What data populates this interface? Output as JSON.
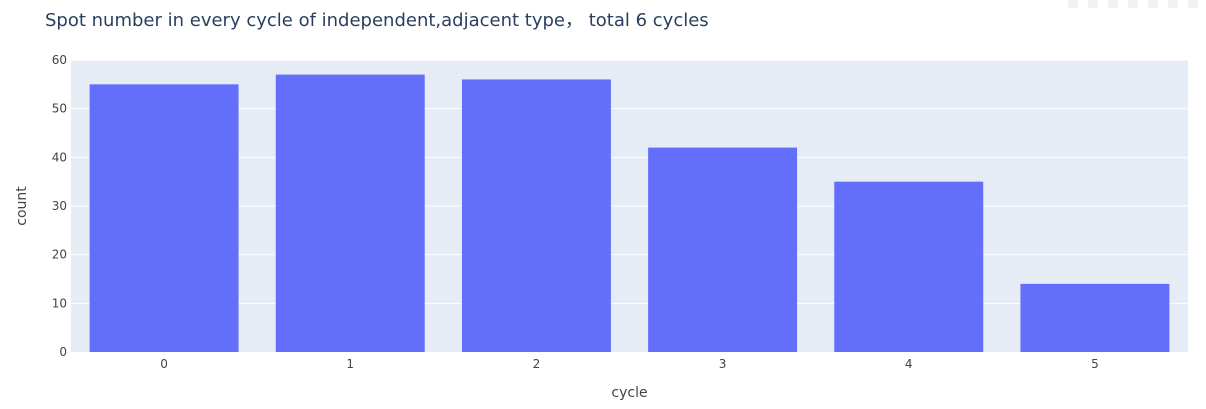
{
  "chart_data": {
    "type": "bar",
    "title": "Spot number in every cycle of independent,adjacent type， total 6 cycles",
    "xlabel": "cycle",
    "ylabel": "count",
    "categories": [
      "0",
      "1",
      "2",
      "3",
      "4",
      "5"
    ],
    "values": [
      55,
      57,
      56,
      42,
      35,
      14
    ],
    "ylim": [
      0,
      60
    ],
    "yticks": [
      0,
      10,
      20,
      30,
      40,
      50,
      60
    ],
    "grid": true,
    "colors": {
      "bar": "#636efa",
      "plot_background": "#e5ecf6",
      "grid": "#ffffff",
      "text": "#444444",
      "title": "#2a3f5f"
    }
  },
  "modebar": {
    "icons": [
      "camera-icon",
      "zoom-icon",
      "pan-icon",
      "zoom-in-icon",
      "zoom-out-icon",
      "autoscale-icon",
      "reset-axes-icon"
    ]
  }
}
